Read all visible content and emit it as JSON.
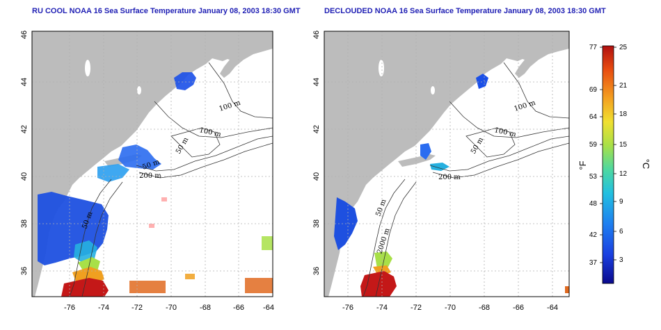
{
  "titles": {
    "left": "RU COOL NOAA 16 Sea Surface Temperature January 08, 2003 18:30 GMT",
    "right": "DECLOUDED NOAA 16 Sea Surface Temperature January 08, 2003 18:30 GMT"
  },
  "axes": {
    "x_ticks": [
      "-76",
      "-74",
      "-72",
      "-70",
      "-68",
      "-66",
      "-64"
    ],
    "y_ticks": [
      "36",
      "38",
      "40",
      "42",
      "44",
      "46"
    ]
  },
  "contours_left": [
    "100 m",
    "100 m",
    "50 m",
    "200 m",
    "50 m",
    "50 m"
  ],
  "contours_right": [
    "100 m",
    "100 m",
    "50 m",
    "200 m",
    "50 m",
    "2000 m"
  ],
  "colorbar": {
    "fahrenheit_labels": [
      "77",
      "69",
      "64",
      "59",
      "53",
      "48",
      "42",
      "37"
    ],
    "celsius_labels": [
      "25",
      "21",
      "18",
      "15",
      "12",
      "9",
      "6",
      "3"
    ],
    "unit_f": "°F",
    "unit_c": "°C",
    "colors": [
      "#0a0a8c",
      "#1a3fe0",
      "#1e7ff0",
      "#22c0e0",
      "#4ed8a0",
      "#a8e048",
      "#f0e030",
      "#f4a020",
      "#e84c10",
      "#b01010"
    ]
  },
  "colors": {
    "land": "#bcbcbc",
    "ocean": "#ffffff",
    "grid": "#b0b0b0",
    "title": "#1f1fb4"
  }
}
